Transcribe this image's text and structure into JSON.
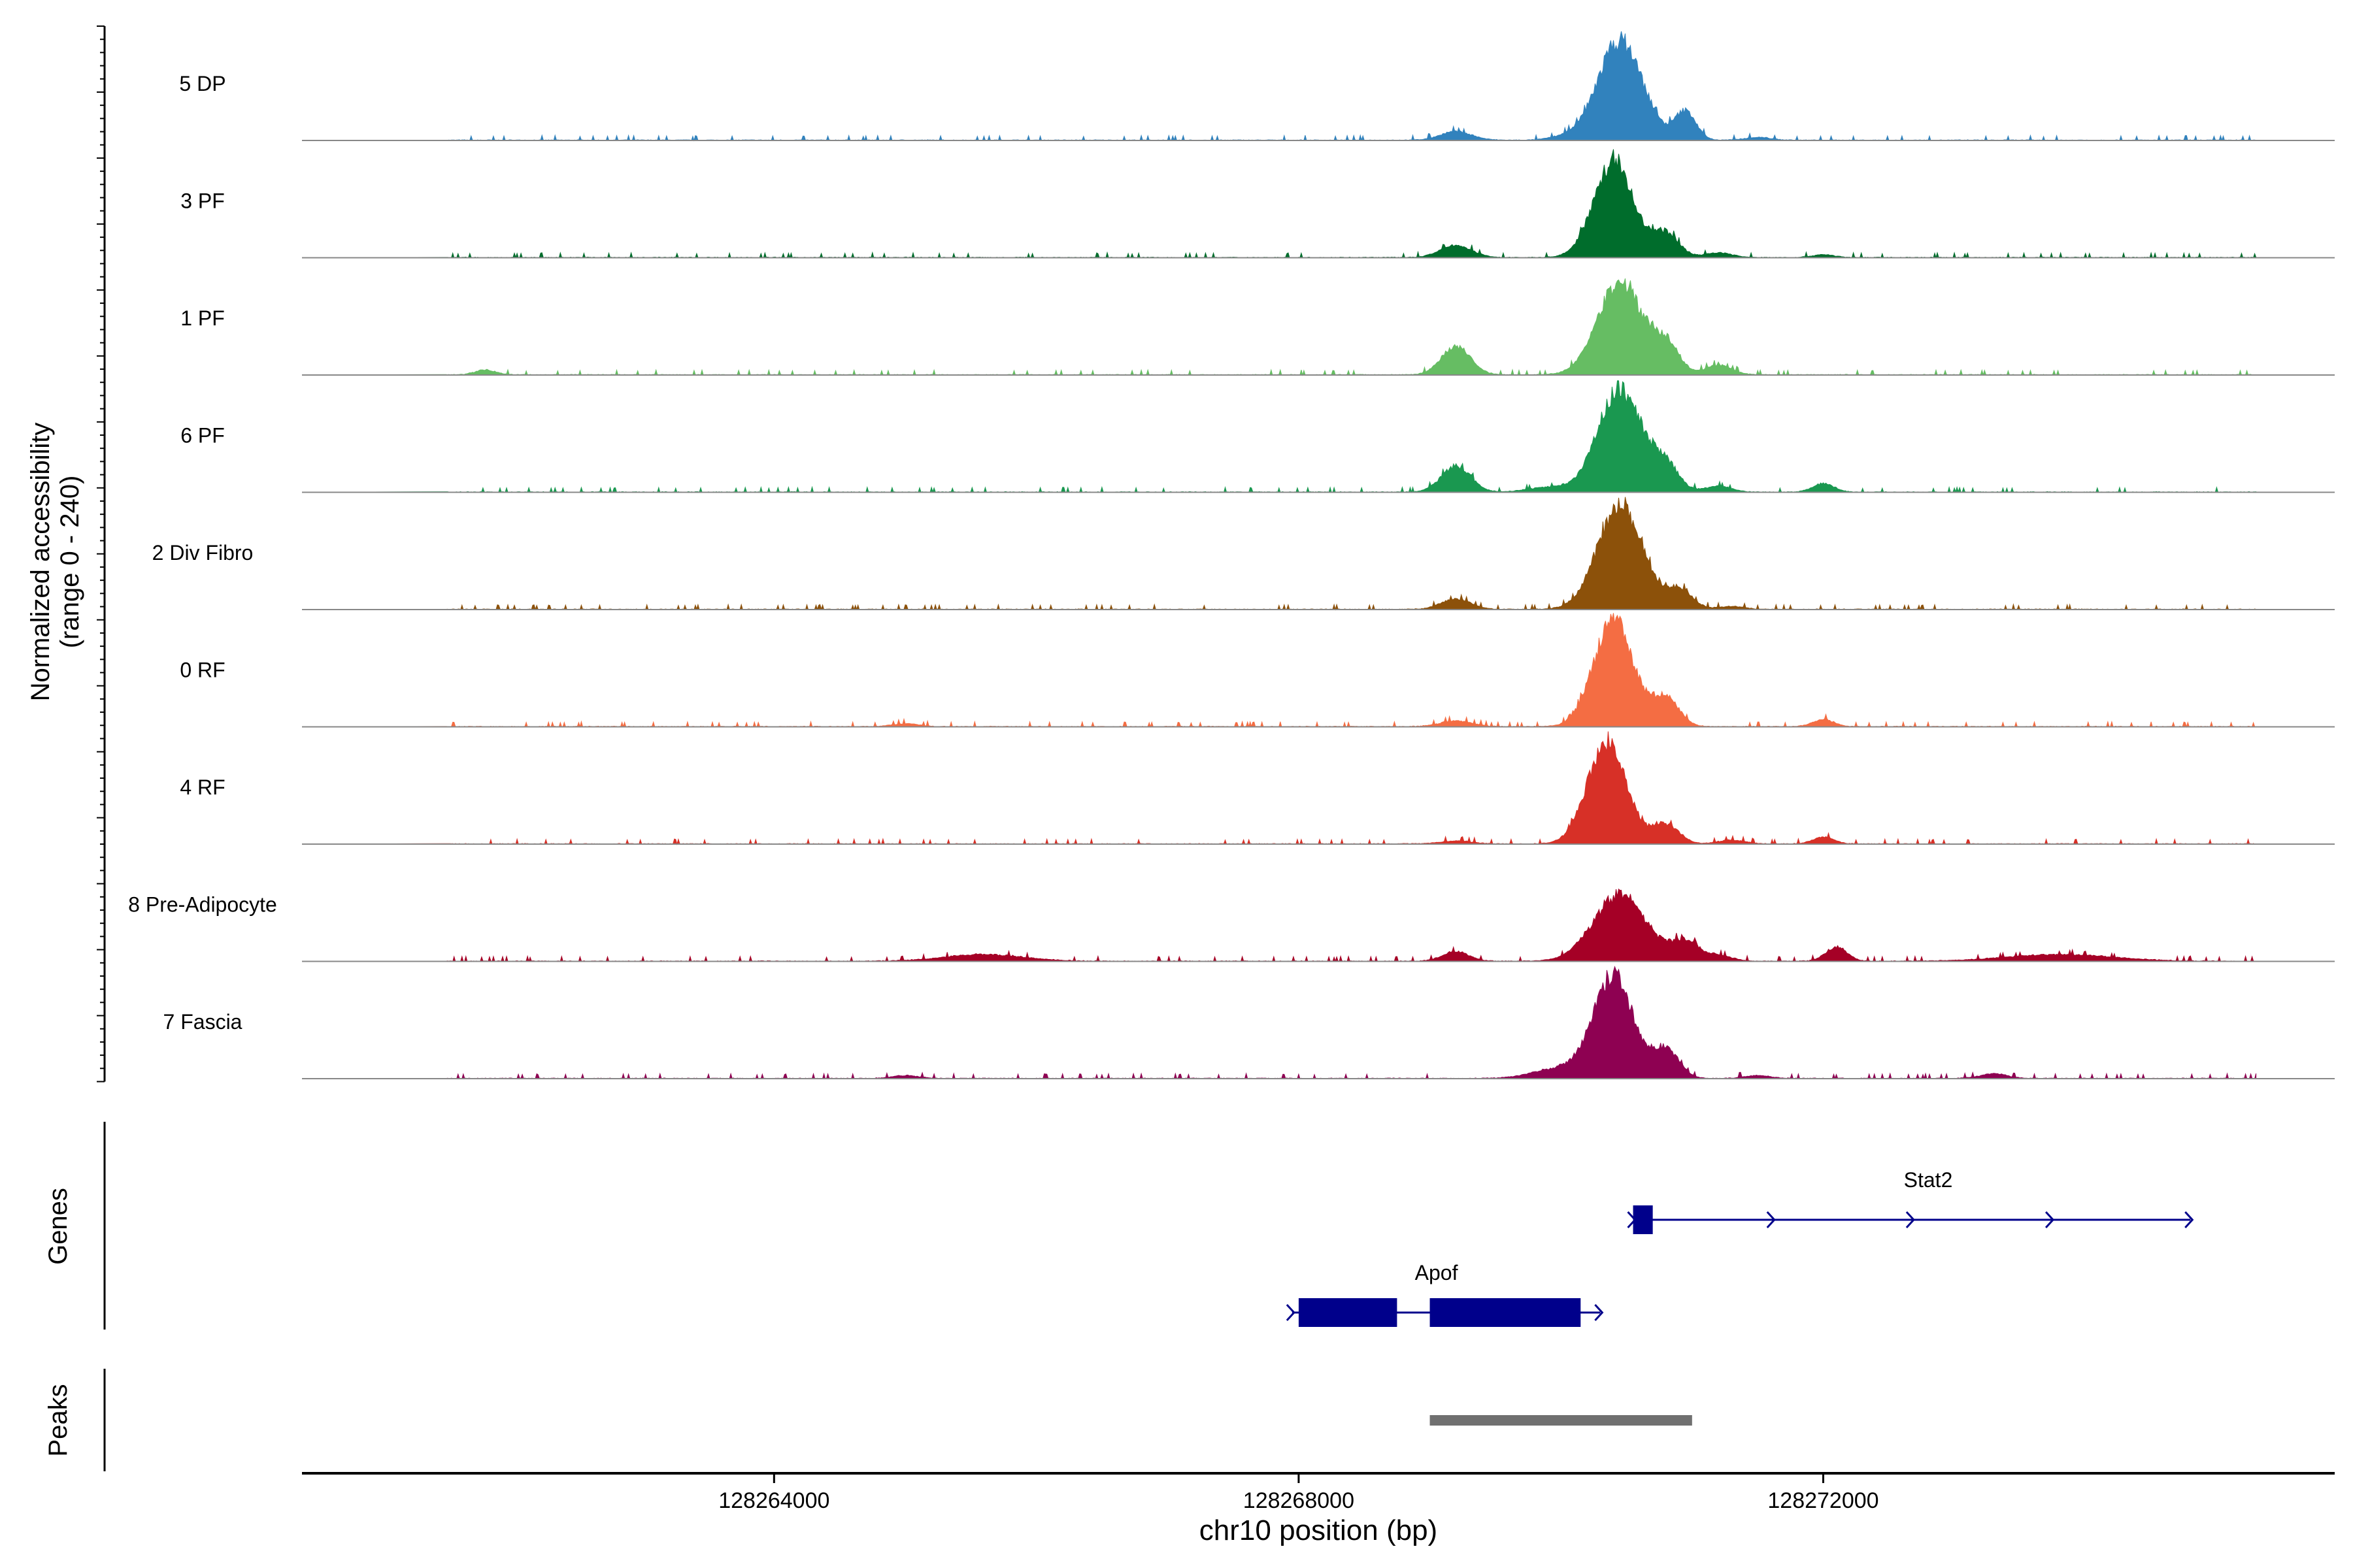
{
  "chart_data": {
    "type": "area",
    "title": "",
    "ylabel_line1": "Normalized accessibility",
    "ylabel_line2": "(range 0 - 240)",
    "ylim": [
      0,
      240
    ],
    "xlabel": "chr10 position (bp)",
    "xlim": [
      128260400,
      128275900
    ],
    "xticks": [
      128264000,
      128268000,
      128272000
    ],
    "xtick_labels": [
      "128264000",
      "128268000",
      "128272000"
    ],
    "tracks": [
      {
        "name": "5 DP",
        "color": "#3182bd",
        "peaks": [
          [
            128270450,
            210,
            170
          ],
          [
            128270950,
            60,
            80
          ],
          [
            128269200,
            18,
            120
          ],
          [
            128271500,
            6,
            100
          ],
          [
            128270000,
            6,
            100
          ]
        ]
      },
      {
        "name": "3 PF",
        "color": "#006d2c",
        "peaks": [
          [
            128270400,
            200,
            150
          ],
          [
            128270800,
            50,
            100
          ],
          [
            128269200,
            25,
            120
          ],
          [
            128271200,
            10,
            100
          ],
          [
            128272000,
            6,
            80
          ]
        ]
      },
      {
        "name": "1 PF",
        "color": "#66bd63",
        "peaks": [
          [
            128270450,
            195,
            170
          ],
          [
            128269200,
            60,
            110
          ],
          [
            128270800,
            60,
            100
          ],
          [
            128261800,
            10,
            80
          ],
          [
            128271200,
            20,
            100
          ]
        ]
      },
      {
        "name": "6 PF",
        "color": "#1a9850",
        "peaks": [
          [
            128270450,
            215,
            170
          ],
          [
            128269200,
            55,
            110
          ],
          [
            128270800,
            50,
            100
          ],
          [
            128272000,
            18,
            80
          ],
          [
            128269900,
            10,
            150
          ],
          [
            128271200,
            12,
            100
          ]
        ]
      },
      {
        "name": "2 Div Fibro",
        "color": "#8c510a",
        "peaks": [
          [
            128270450,
            220,
            170
          ],
          [
            128269200,
            22,
            110
          ],
          [
            128270900,
            40,
            100
          ],
          [
            128271300,
            6,
            100
          ]
        ]
      },
      {
        "name": "0 RF",
        "color": "#f46d43",
        "peaks": [
          [
            128270400,
            225,
            150
          ],
          [
            128270800,
            60,
            100
          ],
          [
            128269200,
            12,
            120
          ],
          [
            128272000,
            15,
            80
          ],
          [
            128265000,
            6,
            100
          ]
        ]
      },
      {
        "name": "4 RF",
        "color": "#d73027",
        "peaks": [
          [
            128270350,
            210,
            150
          ],
          [
            128270800,
            40,
            100
          ],
          [
            128272000,
            14,
            80
          ],
          [
            128269200,
            6,
            120
          ],
          [
            128271300,
            8,
            100
          ]
        ]
      },
      {
        "name": "8 Pre-Adipocyte",
        "color": "#a50026",
        "peaks": [
          [
            128270450,
            140,
            200
          ],
          [
            128270950,
            40,
            100
          ],
          [
            128269200,
            20,
            100
          ],
          [
            128272100,
            30,
            80
          ],
          [
            128265600,
            14,
            300
          ],
          [
            128273800,
            14,
            400
          ],
          [
            128271200,
            12,
            100
          ]
        ]
      },
      {
        "name": "7 Fascia",
        "color": "#8e0152",
        "peaks": [
          [
            128270400,
            215,
            150
          ],
          [
            128270800,
            60,
            100
          ],
          [
            128270000,
            22,
            200
          ],
          [
            128273300,
            10,
            100
          ],
          [
            128271500,
            6,
            100
          ],
          [
            128265000,
            6,
            100
          ]
        ]
      }
    ],
    "genes_label": "Genes",
    "genes": [
      {
        "name": "Stat2",
        "start": 128270550,
        "end": 128274800,
        "exons": [
          [
            128270550,
            128270700
          ]
        ],
        "label_pos": 128272800
      },
      {
        "name": "Apof",
        "start": 128267950,
        "end": 128270300,
        "exons": [
          [
            128268000,
            128268750
          ],
          [
            128269000,
            128270150
          ]
        ],
        "label_pos": 128269050
      }
    ],
    "peaks_label": "Peaks",
    "peak_regions": [
      [
        128269000,
        128271000
      ]
    ]
  }
}
